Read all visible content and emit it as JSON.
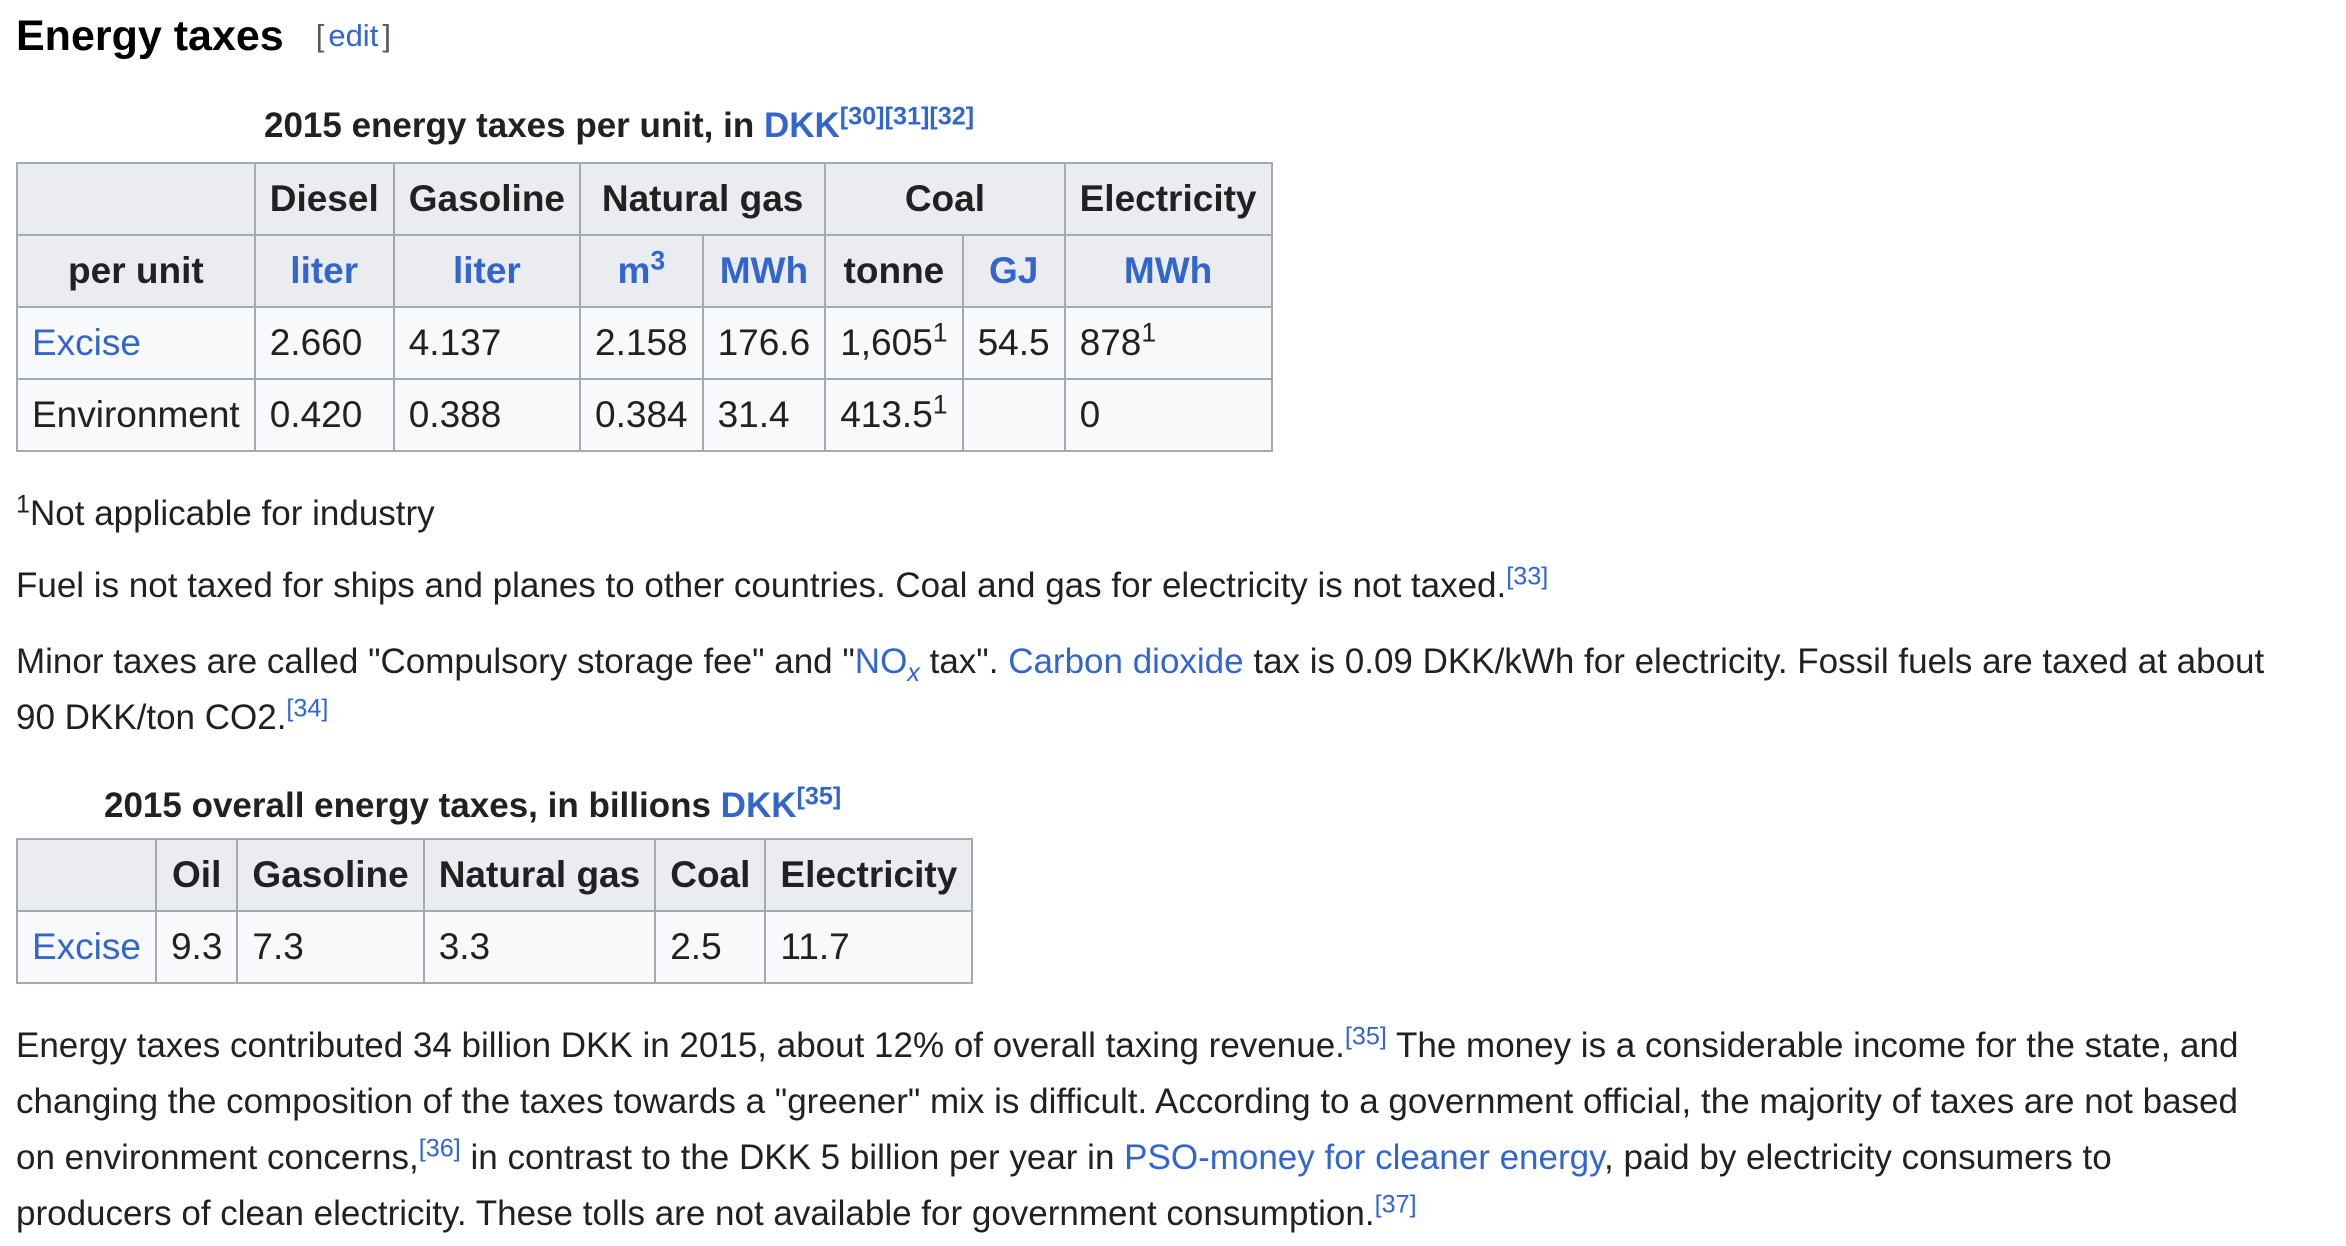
{
  "section": {
    "title": "Energy taxes",
    "edit_open": "[",
    "edit_label": "edit",
    "edit_close": "]"
  },
  "table1": {
    "caption_text": "2015 energy taxes per unit, in ",
    "caption_link": "DKK",
    "caption_refs": [
      "[30]",
      "[31]",
      "[32]"
    ],
    "headers": [
      "Diesel",
      "Gasoline",
      "Natural gas",
      "Coal",
      "Electricity"
    ],
    "units_label": "per unit",
    "units": [
      "liter",
      "liter",
      "m",
      "MWh",
      "tonne",
      "GJ",
      "MWh"
    ],
    "unit_m_sup": "3",
    "rows": [
      {
        "label": "Excise",
        "values": [
          "2.660",
          "4.137",
          "2.158",
          "176.6",
          "1,605",
          "54.5",
          "878"
        ],
        "notes": [
          "",
          "",
          "",
          "",
          "1",
          "",
          "1"
        ]
      },
      {
        "label": "Environment",
        "values": [
          "0.420",
          "0.388",
          "0.384",
          "31.4",
          "413.5",
          "",
          "0"
        ],
        "notes": [
          "",
          "",
          "",
          "",
          "1",
          "",
          ""
        ]
      }
    ]
  },
  "footnote": {
    "mark": "1",
    "text": "Not applicable for industry"
  },
  "para1": {
    "text": "Fuel is not taxed for ships and planes to other countries. Coal and gas for electricity is not taxed.",
    "ref": "[33]"
  },
  "para2": {
    "t1": "Minor taxes are called \"Compulsory storage fee\" and \"",
    "no_link": "NO",
    "no_sub": "x",
    "t2": " tax\". ",
    "co2_link": "Carbon dioxide",
    "t3": " tax is 0.09 DKK/kWh for electricity. Fossil fuels are taxed at about",
    "t4": "90 DKK/ton CO2.",
    "ref": "[34]"
  },
  "table2": {
    "caption_text": "2015 overall energy taxes, in billions ",
    "caption_link": "DKK",
    "caption_ref": "[35]",
    "headers": [
      "Oil",
      "Gasoline",
      "Natural gas",
      "Coal",
      "Electricity"
    ],
    "row": {
      "label": "Excise",
      "values": [
        "9.3",
        "7.3",
        "3.3",
        "2.5",
        "11.7"
      ]
    }
  },
  "para3": {
    "l1a": "Energy taxes contributed 34 billion DKK in 2015, about 12% of overall taxing revenue.",
    "ref1": "[35]",
    "l1b": " The money is a considerable income for the state, and",
    "l2": "changing the composition of the taxes towards a \"greener\" mix is difficult. According to a government official, the majority of taxes are not based",
    "l3a": "on environment concerns,",
    "ref2": "[36]",
    "l3b": " in contrast to the DKK 5 billion per year in ",
    "pso_link": "PSO-money for cleaner energy",
    "l3c": ", paid by electricity consumers to",
    "l4": "producers of clean electricity. These tolls are not available for government consumption.",
    "ref3": "[37]"
  }
}
